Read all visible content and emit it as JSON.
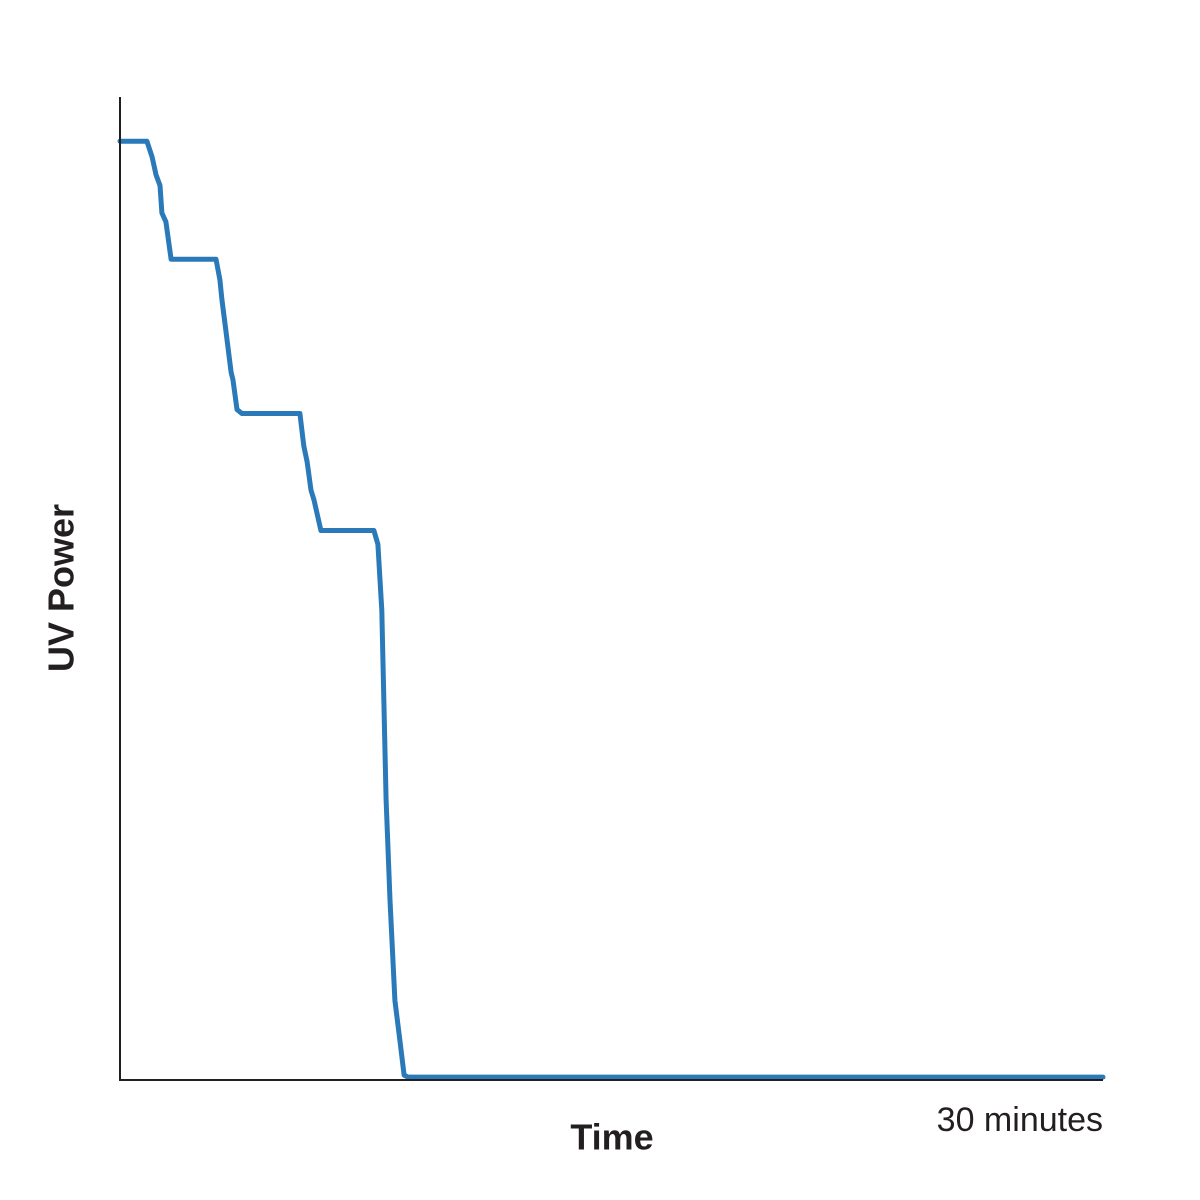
{
  "chart_data": {
    "type": "line",
    "x_label": "Time",
    "y_label": "UV Power",
    "x": [
      0,
      0.82,
      0.98,
      1.1,
      1.22,
      1.28,
      1.4,
      1.56,
      1.65,
      2.93,
      3.05,
      3.11,
      3.23,
      3.39,
      3.45,
      3.57,
      3.72,
      5.4,
      5.49,
      5.61,
      5.71,
      5.83,
      5.92,
      6.13,
      7.63,
      7.75,
      7.87,
      7.99,
      8.12,
      8.24,
      8.39,
      8.54,
      8.67,
      8.79,
      8.94,
      30
    ],
    "values": [
      95.5,
      95.5,
      93.9,
      92.1,
      91.0,
      88.2,
      87.3,
      83.5,
      83.5,
      83.5,
      81.4,
      79.4,
      76.3,
      72.0,
      71.2,
      68.2,
      67.8,
      67.8,
      67.8,
      64.5,
      62.9,
      60.0,
      59.0,
      55.9,
      55.9,
      55.9,
      54.5,
      47.8,
      28.5,
      18.3,
      8.1,
      4.1,
      0.5,
      0.3,
      0.3,
      0.3
    ],
    "color": "#2a7ab9",
    "xlim": [
      0,
      30
    ],
    "ylim": [
      0,
      100
    ],
    "xticks": [
      {
        "value": 30,
        "label": "30 minutes"
      }
    ]
  }
}
